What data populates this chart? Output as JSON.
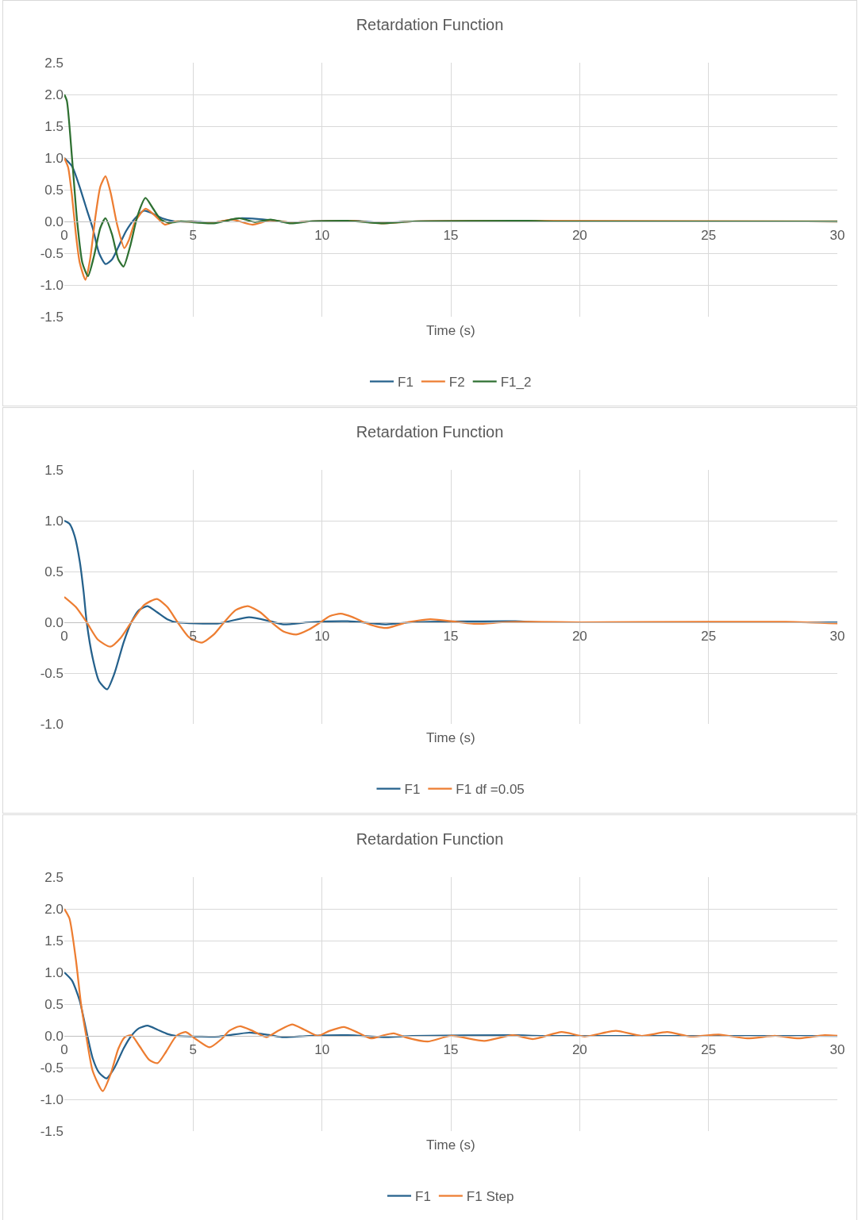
{
  "chart_data": [
    {
      "type": "line",
      "title": "Retardation Function",
      "xlabel": "Time (s)",
      "xlim": [
        0,
        30
      ],
      "xticks": [
        0,
        5,
        10,
        15,
        20,
        25,
        30
      ],
      "ylim": [
        -1.5,
        2.5
      ],
      "yticks": [
        {
          "value": -1.5,
          "label": "-1.5"
        },
        {
          "value": -1,
          "label": "-1.0"
        },
        {
          "value": -0.5,
          "label": "-0.5"
        },
        {
          "value": 0,
          "label": "0.0"
        },
        {
          "value": 0.5,
          "label": "0.5"
        },
        {
          "value": 1,
          "label": "1.0"
        },
        {
          "value": 1.5,
          "label": "1.5"
        },
        {
          "value": 2,
          "label": "2.0"
        },
        {
          "value": 2.5,
          "label": "2.5"
        }
      ],
      "grid": true,
      "legend": "bottom",
      "marker": "none",
      "line_style": "solid",
      "series": [
        {
          "name": "F1",
          "color": "#25618c",
          "x": [
            0,
            0.3,
            0.6,
            0.87,
            1.1,
            1.35,
            1.6,
            1.85,
            2.1,
            2.4,
            2.75,
            3.1,
            3.4,
            3.8,
            4.3,
            5,
            5.8,
            6.8,
            7.5,
            8,
            8.8,
            9.5,
            11.2,
            12.3,
            13.5,
            17.5
          ],
          "values": [
            1,
            0.87,
            0.54,
            0.19,
            -0.1,
            -0.5,
            -0.67,
            -0.6,
            -0.4,
            -0.15,
            0.05,
            0.17,
            0.13,
            0.05,
            0,
            0,
            -0.02,
            0.05,
            0.04,
            0.02,
            -0.02,
            0,
            0.01,
            -0.02,
            0,
            0.01
          ]
        },
        {
          "name": "F2",
          "color": "#ed7d31",
          "x": [
            0,
            0.15,
            0.3,
            0.45,
            0.6,
            0.82,
            1,
            1.2,
            1.4,
            1.6,
            1.8,
            2.05,
            2.33,
            2.5,
            2.75,
            3.15,
            3.5,
            3.9,
            4.3,
            5.8,
            6.5,
            7.3,
            8,
            8.8,
            9.5,
            11.2,
            12.3,
            13.5,
            16.5,
            30
          ],
          "values": [
            1,
            0.85,
            0.4,
            -0.2,
            -0.65,
            -0.92,
            -0.6,
            0.05,
            0.55,
            0.71,
            0.45,
            -0.05,
            -0.42,
            -0.3,
            0,
            0.2,
            0.1,
            -0.05,
            0,
            -0.02,
            0.03,
            -0.05,
            0.02,
            -0.02,
            0,
            0.01,
            -0.03,
            0,
            0.01,
            0
          ]
        },
        {
          "name": "F1_2",
          "color": "#2e7031",
          "x": [
            0,
            0.1,
            0.3,
            0.5,
            0.7,
            0.92,
            1.15,
            1.4,
            1.6,
            1.85,
            2.1,
            2.3,
            2.55,
            2.85,
            3.15,
            3.45,
            3.75,
            4.05,
            4.5,
            5.8,
            6.8,
            7.4,
            8,
            8.8,
            9.5,
            11,
            12.3,
            13.5,
            18,
            19,
            30
          ],
          "values": [
            2,
            1.9,
            1,
            0,
            -0.65,
            -0.86,
            -0.55,
            -0.1,
            0.05,
            -0.2,
            -0.6,
            -0.71,
            -0.4,
            0.1,
            0.37,
            0.2,
            0.03,
            -0.02,
            0,
            -0.03,
            0.05,
            -0.01,
            0.03,
            -0.03,
            0,
            0.01,
            -0.03,
            0,
            0.01,
            0,
            0
          ]
        }
      ]
    },
    {
      "type": "line",
      "title": "Retardation Function",
      "xlabel": "Time (s)",
      "xlim": [
        0,
        30
      ],
      "xticks": [
        0,
        5,
        10,
        15,
        20,
        25,
        30
      ],
      "ylim": [
        -1,
        1.5
      ],
      "yticks": [
        {
          "value": -1,
          "label": "-1.0"
        },
        {
          "value": -0.5,
          "label": "-0.5"
        },
        {
          "value": 0,
          "label": "0.0"
        },
        {
          "value": 0.5,
          "label": "0.5"
        },
        {
          "value": 1,
          "label": "1.0"
        },
        {
          "value": 1.5,
          "label": "1.5"
        }
      ],
      "grid": true,
      "legend": "bottom",
      "marker": "none",
      "line_style": "solid",
      "series": [
        {
          "name": "F1",
          "color": "#25618c",
          "x": [
            0,
            0.2,
            0.4,
            0.6,
            0.75,
            0.87,
            1.1,
            1.35,
            1.66,
            1.95,
            2.3,
            2.6,
            2.9,
            3.23,
            3.6,
            4,
            4.35,
            6,
            7.17,
            8,
            8.5,
            9.5,
            11,
            12.5,
            13.5,
            17.5,
            18.5,
            30
          ],
          "values": [
            1,
            0.97,
            0.85,
            0.6,
            0.3,
            0,
            -0.35,
            -0.58,
            -0.66,
            -0.5,
            -0.2,
            0,
            0.12,
            0.16,
            0.1,
            0.03,
            0,
            -0.01,
            0.05,
            0.01,
            -0.02,
            0,
            0.01,
            -0.02,
            0,
            0.01,
            0,
            0
          ]
        },
        {
          "name": "F1 df =0.05",
          "color": "#ed7d31",
          "x": [
            0,
            0.45,
            0.87,
            1.3,
            1.79,
            2.2,
            2.6,
            3.1,
            3.59,
            4,
            4.4,
            4.85,
            5.33,
            5.8,
            6.2,
            6.65,
            7.12,
            7.6,
            8.04,
            8.5,
            9,
            9.5,
            9.94,
            10.3,
            10.73,
            11.2,
            11.63,
            12.1,
            12.5,
            12.9,
            13.3,
            14.2,
            15,
            16,
            17,
            18,
            20,
            25,
            28,
            30
          ],
          "values": [
            0.25,
            0.15,
            0,
            -0.17,
            -0.24,
            -0.15,
            0,
            0.17,
            0.23,
            0.15,
            0,
            -0.15,
            -0.2,
            -0.12,
            0,
            0.12,
            0.16,
            0.1,
            0,
            -0.09,
            -0.12,
            -0.07,
            0,
            0.06,
            0.085,
            0.05,
            0,
            -0.04,
            -0.056,
            -0.03,
            0,
            0.03,
            0.01,
            -0.015,
            0,
            0.005,
            0,
            0.005,
            0.005,
            -0.01
          ]
        }
      ]
    },
    {
      "type": "line",
      "title": "Retardation Function",
      "xlabel": "Time (s)",
      "xlim": [
        0,
        30
      ],
      "xticks": [
        0,
        5,
        10,
        15,
        20,
        25,
        30
      ],
      "ylim": [
        -1.5,
        2.5
      ],
      "yticks": [
        {
          "value": -1.5,
          "label": "-1.5"
        },
        {
          "value": -1,
          "label": "-1.0"
        },
        {
          "value": -0.5,
          "label": "-0.5"
        },
        {
          "value": 0,
          "label": "0.0"
        },
        {
          "value": 0.5,
          "label": "0.5"
        },
        {
          "value": 1,
          "label": "1.0"
        },
        {
          "value": 1.5,
          "label": "1.5"
        },
        {
          "value": 2,
          "label": "2.0"
        },
        {
          "value": 2.5,
          "label": "2.5"
        }
      ],
      "grid": true,
      "legend": "bottom",
      "marker": "none",
      "line_style": "solid",
      "series": [
        {
          "name": "F1",
          "color": "#25618c",
          "x": [
            0,
            0.3,
            0.6,
            0.87,
            1.1,
            1.35,
            1.64,
            1.95,
            2.3,
            2.6,
            2.9,
            3.23,
            3.6,
            4,
            4.35,
            6,
            7.17,
            8,
            8.5,
            9.5,
            11,
            12.5,
            13.5,
            17.5,
            18.5,
            30
          ],
          "values": [
            1,
            0.87,
            0.55,
            0.05,
            -0.35,
            -0.58,
            -0.67,
            -0.5,
            -0.2,
            0,
            0.12,
            0.16,
            0.1,
            0.03,
            0,
            -0.01,
            0.05,
            0.01,
            -0.02,
            0,
            0.01,
            -0.02,
            0,
            0.01,
            0,
            0
          ]
        },
        {
          "name": "F1 Step",
          "color": "#ed7d31",
          "x": [
            0,
            0.2,
            0.45,
            0.65,
            0.85,
            1.1,
            1.49,
            1.8,
            2.1,
            2.35,
            2.61,
            2.9,
            3.3,
            3.62,
            3.95,
            4.35,
            4.71,
            5.1,
            5.64,
            6.1,
            6.4,
            6.81,
            7.3,
            7.84,
            8.3,
            8.84,
            9.3,
            9.84,
            10.3,
            10.86,
            11.4,
            11.9,
            12.3,
            12.78,
            13.3,
            14.1,
            15,
            16.3,
            17.4,
            18.2,
            19.3,
            20.2,
            21.4,
            22.4,
            23.4,
            24.3,
            25.4,
            26.5,
            27.6,
            28.5,
            29.5,
            30
          ],
          "values": [
            2,
            1.85,
            1.2,
            0.5,
            0,
            -0.55,
            -0.87,
            -0.6,
            -0.2,
            -0.02,
            0.01,
            -0.15,
            -0.38,
            -0.43,
            -0.25,
            0,
            0.06,
            -0.05,
            -0.18,
            -0.05,
            0.08,
            0.15,
            0.08,
            -0.02,
            0.08,
            0.18,
            0.1,
            0,
            0.08,
            0.14,
            0.05,
            -0.04,
            0,
            0.04,
            -0.03,
            -0.09,
            0,
            -0.08,
            0.01,
            -0.05,
            0.06,
            -0.01,
            0.08,
            0,
            0.06,
            -0.01,
            0.02,
            -0.04,
            0,
            -0.04,
            0.01,
            0
          ]
        }
      ]
    }
  ]
}
